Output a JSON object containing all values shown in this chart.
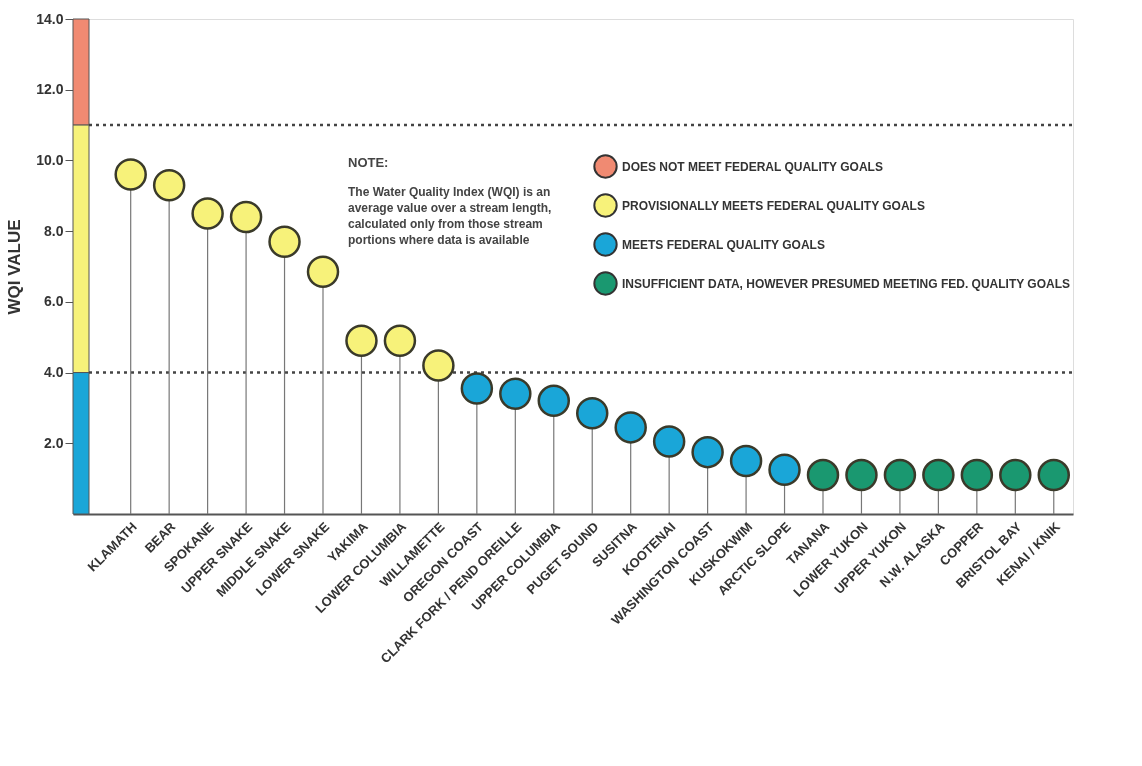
{
  "chart_data": {
    "type": "lollipop",
    "ylabel": "WQI VALUE",
    "categories": [
      null,
      "KLAMATH",
      "BEAR",
      "SPOKANE",
      "UPPER SNAKE",
      "MIDDLE SNAKE",
      "LOWER SNAKE",
      "YAKIMA",
      "LOWER COLUMBIA",
      "WILLAMETTE",
      "OREGON COAST",
      "CLARK FORK / PEND OREILLE",
      "UPPER COLUMBIA",
      "PUGET SOUND",
      "SUSITNA",
      "KOOTENAI",
      "WASHINGTON COAST",
      "KUSKOKWIM",
      "ARCTIC SLOPE",
      "TANANA",
      "LOWER YUKON",
      "UPPER YUKON",
      "N.W. ALASKA",
      "COPPER",
      "BRISTOL BAY",
      "KENAI / KNIK"
    ],
    "series": [
      {
        "name": "DOES NOT MEET FEDERAL QUALITY GOALS",
        "color": "#f08a72",
        "values": [
          null,
          null,
          null,
          null,
          null,
          null,
          null,
          null,
          null,
          null,
          null,
          null,
          null,
          null,
          null,
          null,
          null,
          null,
          null,
          null,
          null,
          null,
          null,
          null,
          null,
          null
        ]
      },
      {
        "name": "PROVISIONALLY MEETS FEDERAL QUALITY GOALS",
        "color": "#f7f27a",
        "values": [
          null,
          9.6,
          9.3,
          8.5,
          8.4,
          7.7,
          6.85,
          4.9,
          4.9,
          4.2,
          null,
          null,
          null,
          null,
          null,
          null,
          null,
          null,
          null,
          null,
          null,
          null,
          null,
          null,
          null,
          null
        ]
      },
      {
        "name": "MEETS FEDERAL QUALITY GOALS",
        "color": "#1aa6d8",
        "values": [
          null,
          null,
          null,
          null,
          null,
          null,
          null,
          null,
          null,
          null,
          3.55,
          3.4,
          3.2,
          2.85,
          2.45,
          2.05,
          1.75,
          1.5,
          1.25,
          null,
          null,
          null,
          null,
          null,
          null,
          null
        ]
      },
      {
        "name": "INSUFFICIENT DATA, HOWEVER PRESUMED MEETING FED. QUALITY GOALS",
        "color": "#1a9870",
        "values": [
          null,
          null,
          null,
          null,
          null,
          null,
          null,
          null,
          null,
          null,
          null,
          null,
          null,
          null,
          null,
          null,
          null,
          null,
          null,
          1.1,
          1.1,
          1.1,
          1.1,
          1.1,
          1.1,
          1.1
        ]
      },
      {
        "type": "bar",
        "color": "#f08a72",
        "values": [
          3,
          null,
          null,
          null,
          null,
          null,
          null,
          null,
          null,
          null,
          null,
          null,
          null,
          null,
          null,
          null,
          null,
          null,
          null,
          null,
          null,
          null,
          null,
          null,
          null,
          null
        ],
        "base": [
          11,
          null,
          null,
          null,
          null,
          null,
          null,
          null,
          null,
          null,
          null,
          null,
          null,
          null,
          null,
          null,
          null,
          null,
          null,
          null,
          null,
          null,
          null,
          null,
          null,
          null
        ]
      },
      {
        "type": "bar",
        "color": "#f7f27a",
        "values": [
          7,
          null,
          null,
          null,
          null,
          null,
          null,
          null,
          null,
          null,
          null,
          null,
          null,
          null,
          null,
          null,
          null,
          null,
          null,
          null,
          null,
          null,
          null,
          null,
          null,
          null
        ],
        "base": [
          4,
          null,
          null,
          null,
          null,
          null,
          null,
          null,
          null,
          null,
          null,
          null,
          null,
          null,
          null,
          null,
          null,
          null,
          null,
          null,
          null,
          null,
          null,
          null,
          null,
          null
        ]
      },
      {
        "type": "bar",
        "color": "#1aa6d8",
        "values": [
          4,
          null,
          null,
          null,
          null,
          null,
          null,
          null,
          null,
          null,
          null,
          null,
          null,
          null,
          null,
          null,
          null,
          null,
          null,
          null,
          null,
          null,
          null,
          null,
          null,
          null
        ],
        "base": [
          0,
          null,
          null,
          null,
          null,
          null,
          null,
          null,
          null,
          null,
          null,
          null,
          null,
          null,
          null,
          null,
          null,
          null,
          null,
          null,
          null,
          null,
          null,
          null,
          null,
          null
        ]
      }
    ],
    "ylim": [
      0,
      14
    ],
    "yticks": [
      {
        "value": 2,
        "label": "2.0"
      },
      {
        "value": 4,
        "label": "4.0"
      },
      {
        "value": 6,
        "label": "6.0"
      },
      {
        "value": 8,
        "label": "8.0"
      },
      {
        "value": 10,
        "label": "10.0"
      },
      {
        "value": 12,
        "label": "12.0"
      },
      {
        "value": 14,
        "label": "14.0"
      }
    ],
    "ref_lines": [
      {
        "axis": "y",
        "value": 11,
        "line_style": "dotted"
      },
      {
        "axis": "y",
        "value": 4,
        "line_style": "dotted"
      }
    ],
    "annotations": [
      "NOTE:",
      "The Water Quality Index (WQI) is an average value over a stream length, calculated only from those stream portions where data is available"
    ],
    "marker": "circle",
    "grid": false,
    "legend": "top right"
  }
}
